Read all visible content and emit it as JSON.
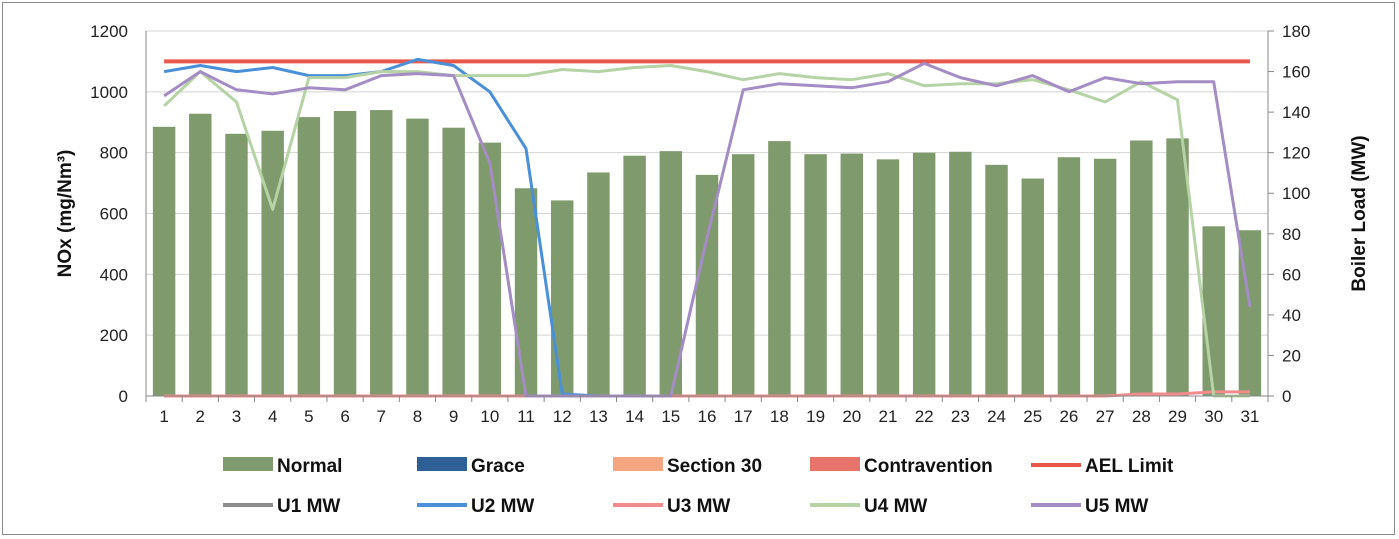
{
  "chart_data": {
    "type": "bar",
    "title": "",
    "categories": [
      "1",
      "2",
      "3",
      "4",
      "5",
      "6",
      "7",
      "8",
      "9",
      "10",
      "11",
      "12",
      "13",
      "14",
      "15",
      "16",
      "17",
      "18",
      "19",
      "20",
      "21",
      "22",
      "23",
      "24",
      "25",
      "26",
      "27",
      "28",
      "29",
      "30",
      "31"
    ],
    "ylabel": "NOx (mg/Nm³)",
    "y2label": "Boiler Load (MW)",
    "ylim": [
      0,
      1200
    ],
    "y2lim": [
      0,
      180
    ],
    "yticks": [
      0,
      200,
      400,
      600,
      800,
      1000,
      1200
    ],
    "y2ticks": [
      0,
      20,
      40,
      60,
      80,
      100,
      120,
      140,
      160,
      180
    ],
    "grid": true,
    "legend_position": "bottom",
    "bar_series": [
      {
        "name": "Normal",
        "color": "#7f9a6d",
        "values": [
          885,
          928,
          862,
          872,
          917,
          937,
          940,
          912,
          882,
          833,
          683,
          643,
          735,
          790,
          805,
          727,
          795,
          838,
          795,
          797,
          778,
          800,
          803,
          760,
          715,
          785,
          780,
          840,
          847,
          558,
          545
        ]
      },
      {
        "name": "Grace",
        "color": "#2e5f96",
        "values": []
      },
      {
        "name": "Section 30",
        "color": "#f4a582",
        "values": []
      },
      {
        "name": "Contravention",
        "color": "#e8736a",
        "values": []
      }
    ],
    "line_series": [
      {
        "name": "AEL Limit",
        "axis": "left",
        "color": "#e8574a",
        "values": [
          1100,
          1100,
          1100,
          1100,
          1100,
          1100,
          1100,
          1100,
          1100,
          1100,
          1100,
          1100,
          1100,
          1100,
          1100,
          1100,
          1100,
          1100,
          1100,
          1100,
          1100,
          1100,
          1100,
          1100,
          1100,
          1100,
          1100,
          1100,
          1100,
          1100,
          1100
        ]
      },
      {
        "name": "U1 MW",
        "axis": "right",
        "color": "#8c8c8c",
        "values": []
      },
      {
        "name": "U2 MW",
        "axis": "right",
        "color": "#4a90d9",
        "values": [
          160,
          163,
          160,
          162,
          158,
          158,
          160,
          166,
          163,
          150,
          122,
          1,
          0,
          0,
          0,
          null,
          null,
          null,
          null,
          null,
          null,
          null,
          null,
          null,
          null,
          null,
          null,
          null,
          null,
          null,
          null
        ]
      },
      {
        "name": "U3 MW",
        "axis": "right",
        "color": "#f28b8b",
        "values": [
          0,
          0,
          0,
          0,
          0,
          0,
          0,
          0,
          0,
          0,
          0,
          0,
          0,
          0,
          0,
          0,
          0,
          0,
          0,
          0,
          0,
          0,
          0,
          0,
          0,
          0,
          0,
          1,
          1,
          2,
          2
        ]
      },
      {
        "name": "U4 MW",
        "axis": "right",
        "color": "#b5d3a5",
        "values": [
          143,
          160,
          145,
          92,
          157,
          157,
          160,
          160,
          158,
          158,
          158,
          161,
          160,
          162,
          163,
          160,
          156,
          159,
          157,
          156,
          159,
          153,
          154,
          154,
          156,
          151,
          145,
          155,
          146,
          0,
          0
        ]
      },
      {
        "name": "U5 MW",
        "axis": "right",
        "color": "#a48cc4",
        "values": [
          148,
          160,
          151,
          149,
          152,
          151,
          158,
          159,
          158,
          115,
          0,
          0,
          0,
          0,
          0,
          78,
          151,
          154,
          153,
          152,
          155,
          164,
          157,
          153,
          158,
          150,
          157,
          154,
          155,
          155,
          44
        ]
      }
    ],
    "legend_rows": [
      [
        "Normal",
        "Grace",
        "Section 30",
        "Contravention",
        "AEL Limit"
      ],
      [
        "U1 MW",
        "U2 MW",
        "U3 MW",
        "U4 MW",
        "U5 MW"
      ]
    ]
  }
}
